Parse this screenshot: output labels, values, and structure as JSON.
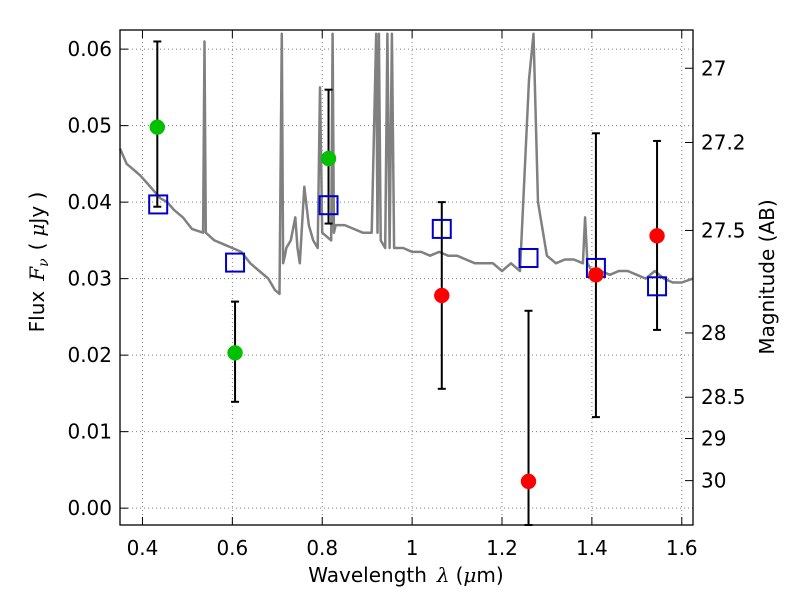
{
  "chart_data": {
    "type": "scatter",
    "xlabel": "Wavelength",
    "xlabel_symbol": "λ",
    "xlabel_unit_open": "(",
    "xlabel_unit_mu": "μ",
    "xlabel_unit_close": "m)",
    "ylabel": "Flux",
    "ylabel_symbol": "F",
    "ylabel_subscript": "ν",
    "ylabel_unit_open": "(",
    "ylabel_unit_mu": "μ",
    "ylabel_unit_close": "Jy )",
    "y2label": "Magnitude (AB)",
    "xlim": [
      0.35,
      1.625
    ],
    "ylim": [
      -0.0022,
      0.0625
    ],
    "grid": true,
    "grid_style": "dotted",
    "xticks": [
      0.4,
      0.6,
      0.8,
      1.0,
      1.2,
      1.4,
      1.6
    ],
    "xtick_labels": [
      "0.4",
      "0.6",
      "0.8",
      "1",
      "1.2",
      "1.4",
      "1.6"
    ],
    "yticks": [
      0.0,
      0.01,
      0.02,
      0.03,
      0.04,
      0.05,
      0.06
    ],
    "ytick_labels": [
      "0.00",
      "0.01",
      "0.02",
      "0.03",
      "0.04",
      "0.05",
      "0.06"
    ],
    "y2ticks": [
      {
        "label": "27",
        "flux": 0.0575
      },
      {
        "label": "27.2",
        "flux": 0.0478
      },
      {
        "label": "27.5",
        "flux": 0.0363
      },
      {
        "label": "28",
        "flux": 0.0229
      },
      {
        "label": "28.5",
        "flux": 0.0145
      },
      {
        "label": "29",
        "flux": 0.0091
      },
      {
        "label": "30",
        "flux": 0.0036
      }
    ],
    "colors": {
      "spectrum": "#808080",
      "green": "#00c000",
      "red": "#ff0000",
      "model": "#0000cc",
      "errorbar": "#000000",
      "grid": "#7f7f7f"
    },
    "series": [
      {
        "kind": "green-points",
        "x": [
          0.433,
          0.606,
          0.814
        ],
        "y": [
          0.0498,
          0.0203,
          0.0457
        ],
        "yerr_low": [
          0.0394,
          0.0139,
          0.0372
        ],
        "yerr_high": [
          0.061,
          0.027,
          0.0547
        ]
      },
      {
        "kind": "red-points",
        "x": [
          1.066,
          1.259,
          1.409,
          1.545
        ],
        "y": [
          0.0278,
          0.0035,
          0.0305,
          0.0356
        ],
        "yerr_low": [
          0.0156,
          -0.0022,
          0.0119,
          0.0233
        ],
        "yerr_high": [
          0.04,
          0.0258,
          0.049,
          0.048
        ]
      },
      {
        "kind": "model-squares",
        "x": [
          0.435,
          0.606,
          0.814,
          1.066,
          1.259,
          1.409,
          1.545
        ],
        "y": [
          0.0397,
          0.0321,
          0.0396,
          0.0365,
          0.0327,
          0.0314,
          0.029
        ]
      },
      {
        "kind": "spectrum",
        "x": [
          0.35,
          0.365,
          0.375,
          0.385,
          0.395,
          0.41,
          0.425,
          0.44,
          0.455,
          0.47,
          0.49,
          0.51,
          0.535,
          0.538,
          0.541,
          0.56,
          0.58,
          0.6,
          0.62,
          0.64,
          0.66,
          0.68,
          0.695,
          0.705,
          0.71,
          0.713,
          0.717,
          0.72,
          0.73,
          0.74,
          0.745,
          0.75,
          0.76,
          0.77,
          0.78,
          0.79,
          0.795,
          0.8,
          0.82,
          0.823,
          0.826,
          0.83,
          0.85,
          0.87,
          0.89,
          0.91,
          0.92,
          0.923,
          0.926,
          0.93,
          0.94,
          0.945,
          0.95,
          0.955,
          0.96,
          0.98,
          1.0,
          1.02,
          1.04,
          1.06,
          1.08,
          1.1,
          1.12,
          1.14,
          1.16,
          1.18,
          1.2,
          1.22,
          1.24,
          1.26,
          1.27,
          1.28,
          1.3,
          1.32,
          1.34,
          1.36,
          1.38,
          1.385,
          1.39,
          1.4,
          1.42,
          1.44,
          1.46,
          1.48,
          1.5,
          1.52,
          1.54,
          1.56,
          1.58,
          1.6,
          1.625
        ],
        "y": [
          0.047,
          0.045,
          0.0445,
          0.044,
          0.0435,
          0.0425,
          0.0415,
          0.0405,
          0.04,
          0.039,
          0.038,
          0.0365,
          0.036,
          0.061,
          0.036,
          0.035,
          0.0345,
          0.034,
          0.0335,
          0.032,
          0.031,
          0.03,
          0.0285,
          0.028,
          0.062,
          0.032,
          0.033,
          0.034,
          0.035,
          0.038,
          0.034,
          0.032,
          0.042,
          0.037,
          0.035,
          0.034,
          0.055,
          0.036,
          0.035,
          0.062,
          0.036,
          0.037,
          0.037,
          0.0365,
          0.036,
          0.036,
          0.062,
          0.036,
          0.062,
          0.035,
          0.034,
          0.062,
          0.034,
          0.062,
          0.034,
          0.034,
          0.0335,
          0.0335,
          0.033,
          0.0335,
          0.033,
          0.033,
          0.0325,
          0.032,
          0.032,
          0.032,
          0.031,
          0.032,
          0.031,
          0.056,
          0.062,
          0.04,
          0.033,
          0.032,
          0.0325,
          0.0325,
          0.032,
          0.038,
          0.032,
          0.031,
          0.031,
          0.0305,
          0.031,
          0.031,
          0.0305,
          0.03,
          0.031,
          0.03,
          0.0295,
          0.0295,
          0.03
        ]
      }
    ]
  }
}
